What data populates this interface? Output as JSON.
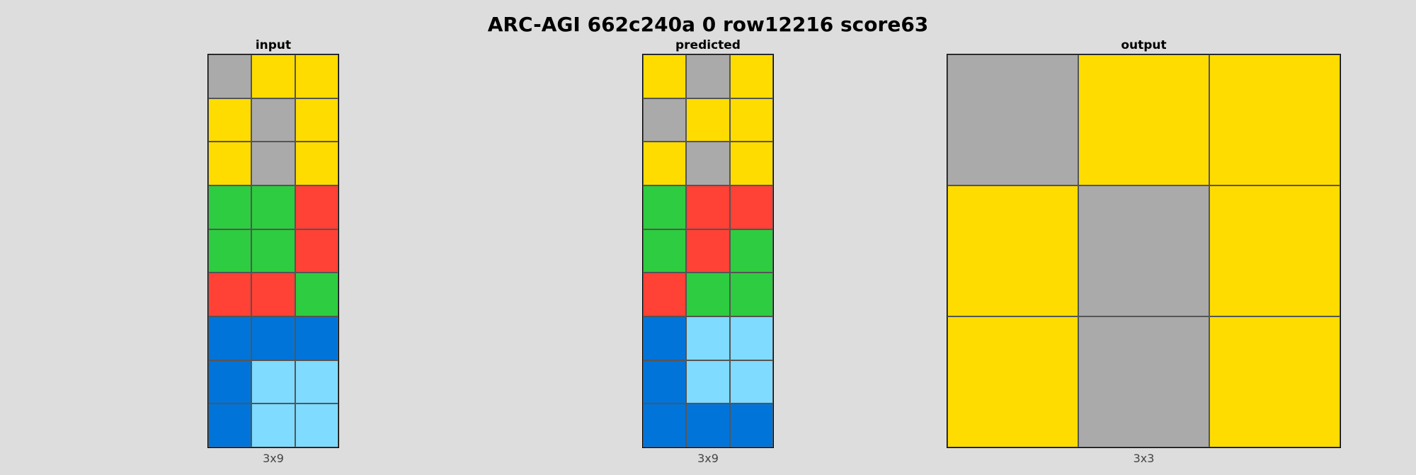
{
  "title": "ARC-AGI 662c240a 0 row12216 score63",
  "palette": {
    "0": "#000000",
    "1": "#0074D9",
    "2": "#FF4136",
    "3": "#2ECC40",
    "4": "#FFDC00",
    "5": "#AAAAAA",
    "6": "#F012BE",
    "7": "#FF851B",
    "8": "#7FDBFF",
    "9": "#870C25"
  },
  "panels": {
    "input": {
      "label": "input",
      "dims": "3x9",
      "grid": [
        [
          5,
          4,
          4
        ],
        [
          4,
          5,
          4
        ],
        [
          4,
          5,
          4
        ],
        [
          3,
          3,
          2
        ],
        [
          3,
          3,
          2
        ],
        [
          2,
          2,
          3
        ],
        [
          1,
          1,
          1
        ],
        [
          1,
          8,
          8
        ],
        [
          1,
          8,
          8
        ]
      ]
    },
    "predicted": {
      "label": "predicted",
      "dims": "3x9",
      "grid": [
        [
          4,
          5,
          4
        ],
        [
          5,
          4,
          4
        ],
        [
          4,
          5,
          4
        ],
        [
          3,
          2,
          2
        ],
        [
          3,
          2,
          3
        ],
        [
          2,
          3,
          3
        ],
        [
          1,
          8,
          8
        ],
        [
          1,
          8,
          8
        ],
        [
          1,
          1,
          1
        ]
      ]
    },
    "output": {
      "label": "output",
      "dims": "3x3",
      "grid": [
        [
          5,
          4,
          4
        ],
        [
          4,
          5,
          4
        ],
        [
          4,
          5,
          4
        ]
      ]
    }
  }
}
